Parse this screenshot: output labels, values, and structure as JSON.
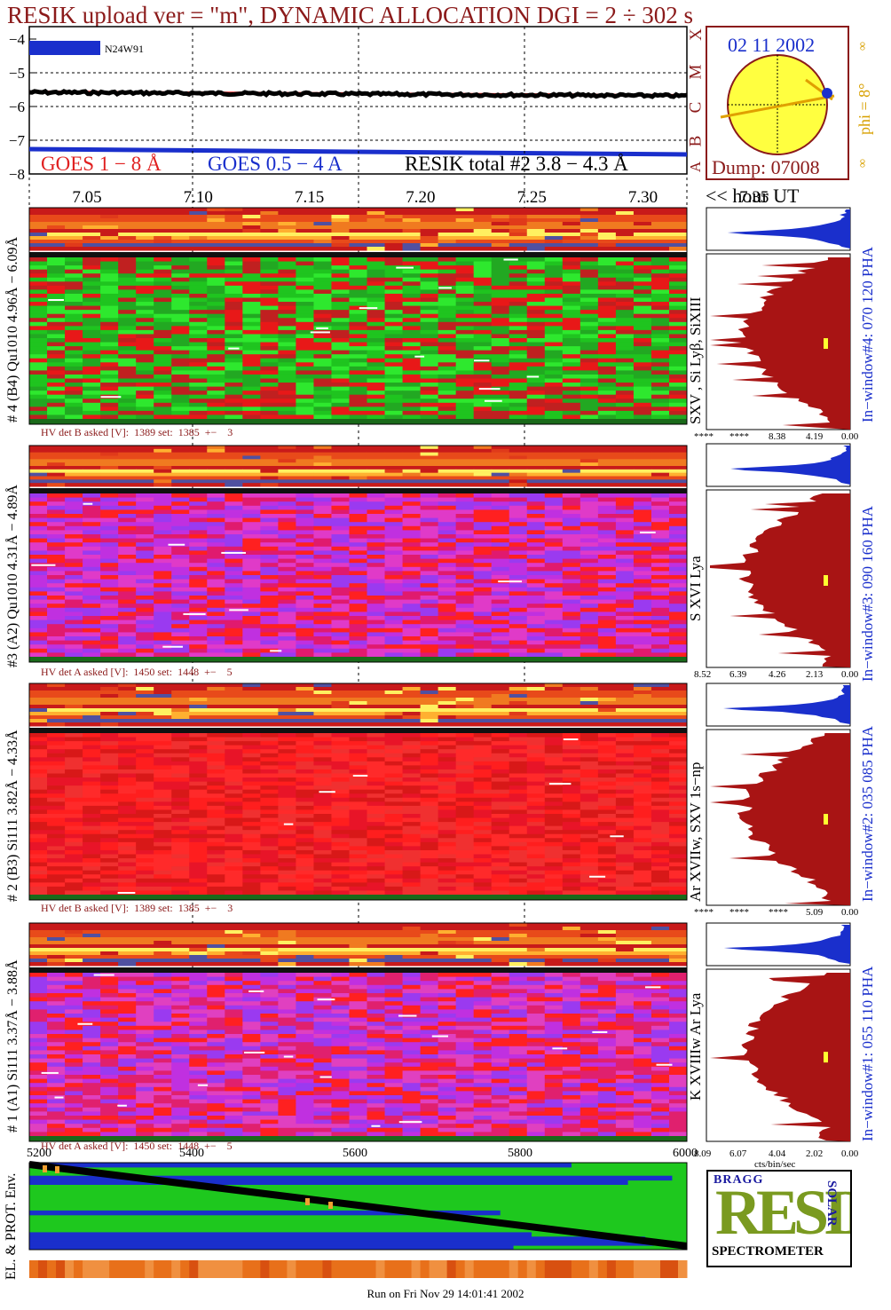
{
  "header": {
    "title": "RESIK upload ver = \"m\", DYNAMIC ALLOCATION  DGI =   2 ÷ 302 s"
  },
  "goes": {
    "y_ticks": [
      "−4",
      "−5",
      "−6",
      "−7",
      "−8"
    ],
    "legend": {
      "goes_long": "GOES 1 − 8 Å",
      "goes_short": "GOES 0.5 − 4 A",
      "resik_total": "RESIK total #2  3.8 − 4.3 Å"
    },
    "flare_label": "N24W91",
    "flare_classes": [
      "X",
      "M",
      "C",
      "B",
      "A"
    ]
  },
  "sun": {
    "date": "02 11 2002",
    "dump": "Dump: 07008",
    "phi": "phi =  8°",
    "inf_top": "∞",
    "inf_bottom": "∞"
  },
  "time_axis": {
    "ticks": [
      "7.05",
      "7.10",
      "7.15",
      "7.20",
      "7.25",
      "7.30",
      "7.35"
    ],
    "unit": "<< hour UT"
  },
  "detectors": [
    {
      "label": "# 4 (B4) Qu1010 4.96Å − 6.09Å",
      "lines": "SXV , Si Lyβ, SiXIII",
      "hv": "HV det B asked [V]:  1389 set:  1385  +−    3",
      "window": "In−window#4:  070 120 PHA",
      "ticks": [
        "****",
        "****",
        "8.38",
        "4.19",
        "0.00"
      ],
      "colors": [
        "#1fc41f",
        "#2ee82e",
        "#c02020",
        "#e81818",
        "#22a822"
      ]
    },
    {
      "label": "#3 (A2) Qu1010  4.31Å − 4.89Å",
      "lines": "S XVI Lya",
      "hv": "HV det A asked [V]:  1450 set:  1448  +−    5",
      "window": "In−window#3:  090 160 PHA",
      "ticks": [
        "8.52",
        "6.39",
        "4.26",
        "2.13",
        "0.00"
      ],
      "colors": [
        "#c030e0",
        "#e01a6e",
        "#ff2020",
        "#9a3af0",
        "#e03ac8"
      ]
    },
    {
      "label": "# 2 (B3) Si111  3.82Å − 4.33Å",
      "lines": "Ar XVIIw,  SXV 1s−np",
      "hv": "HV det B asked [V]:  1389 set:  1385  +−    3",
      "window": "In−window#2:  035 085 PHA",
      "ticks": [
        "****",
        "****",
        "****",
        "5.09",
        "0.00"
      ],
      "colors": [
        "#ff1e1e",
        "#e81428",
        "#f03030",
        "#d81818",
        "#ff2a2a"
      ]
    },
    {
      "label": "# 1 (A1) Si111  3.37Å − 3.88Å",
      "lines": "K XVIIIw  Ar Lya",
      "hv": "HV det A asked [V]:  1450 set:  1448  +−    5",
      "window": "In−window#1:  055 110 PHA",
      "ticks": [
        "8.09",
        "6.07",
        "4.04",
        "2.02",
        "0.00"
      ],
      "colors": [
        "#c030e0",
        "#e0206e",
        "#ff2020",
        "#9a3af0",
        "#e040c0"
      ]
    }
  ],
  "pha_xlabel": "cts/bin/sec",
  "env": {
    "label": "EL. & PROT. Env.",
    "ticks": [
      "5200",
      "5400",
      "5600",
      "5800",
      "6000"
    ]
  },
  "logo": {
    "text": "RESIK",
    "bragg": "BRAGG",
    "solar": "SOLAR",
    "subtitle": "SPECTROMETER"
  },
  "footer": "Run on Fri Nov 29 14:01:41 2002"
}
